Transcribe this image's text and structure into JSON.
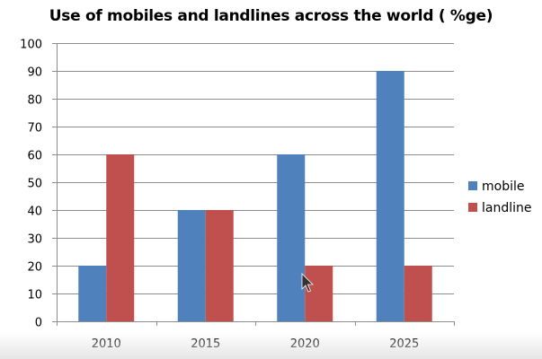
{
  "chart_data": {
    "type": "bar",
    "title": "Use of mobiles and landlines across the world ( %ge)",
    "categories": [
      "2010",
      "2015",
      "2020",
      "2025"
    ],
    "series": [
      {
        "name": "mobile",
        "values": [
          20,
          40,
          60,
          90
        ],
        "color": "#4F81BD"
      },
      {
        "name": "landline",
        "values": [
          60,
          40,
          20,
          20
        ],
        "color": "#C0504D"
      }
    ],
    "ylim": [
      0,
      100
    ],
    "yticks": [
      0,
      10,
      20,
      30,
      40,
      50,
      60,
      70,
      80,
      90,
      100
    ],
    "grid": true,
    "legend_position": "right",
    "colors": {
      "grid": "#8c8c8c",
      "axis": "#8c8c8c",
      "text": "#000000"
    }
  },
  "cursor_icon": "mouse-pointer-icon"
}
